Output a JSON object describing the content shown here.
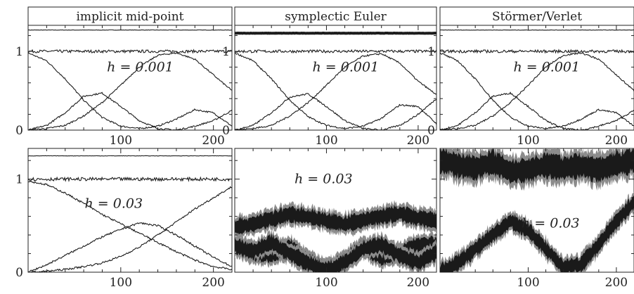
{
  "chart_data": [
    {
      "type": "line",
      "title": "implicit mid-point",
      "annotation": "h = 0.001",
      "xlim": [
        0,
        220
      ],
      "ylim": [
        0,
        1.33
      ],
      "xticks": [
        100,
        200
      ],
      "yticks": [
        0,
        1
      ],
      "series": [
        {
          "x": [
            0,
            220
          ],
          "y": [
            1.27,
            1.27
          ]
        },
        {
          "x": [
            0,
            220
          ],
          "y": [
            1.0,
            1.0
          ]
        },
        {
          "x": [
            0,
            20,
            40,
            60,
            80,
            100,
            120,
            140,
            160,
            180,
            200,
            220
          ],
          "y": [
            0.98,
            0.88,
            0.65,
            0.38,
            0.16,
            0.05,
            0.02,
            0.05,
            0.14,
            0.26,
            0.22,
            0.05
          ]
        },
        {
          "x": [
            0,
            20,
            40,
            60,
            80,
            100,
            120,
            140,
            160,
            180,
            200,
            220
          ],
          "y": [
            0.0,
            0.06,
            0.22,
            0.43,
            0.47,
            0.3,
            0.12,
            0.02,
            0.0,
            0.05,
            0.12,
            0.25
          ]
        },
        {
          "x": [
            0,
            20,
            40,
            60,
            80,
            100,
            120,
            140,
            160,
            180,
            200,
            220
          ],
          "y": [
            0.0,
            0.02,
            0.06,
            0.18,
            0.35,
            0.57,
            0.8,
            0.95,
            0.98,
            0.9,
            0.7,
            0.5
          ]
        }
      ]
    },
    {
      "type": "line",
      "title": "symplectic Euler",
      "annotation": "h = 0.001",
      "xlim": [
        0,
        220
      ],
      "ylim": [
        0,
        1.33
      ],
      "xticks": [
        100,
        200
      ],
      "yticks": [
        0,
        1
      ],
      "series": [
        {
          "x": [
            0,
            220
          ],
          "y": [
            1.23,
            1.23
          ]
        },
        {
          "x": [
            0,
            220
          ],
          "y": [
            1.0,
            1.0
          ]
        },
        {
          "x": [
            0,
            20,
            40,
            60,
            80,
            100,
            120,
            140,
            160,
            180,
            200,
            220
          ],
          "y": [
            0.98,
            0.88,
            0.65,
            0.38,
            0.17,
            0.06,
            0.02,
            0.05,
            0.15,
            0.32,
            0.3,
            0.08
          ]
        },
        {
          "x": [
            0,
            20,
            40,
            60,
            80,
            100,
            120,
            140,
            160,
            180,
            200,
            220
          ],
          "y": [
            0.0,
            0.06,
            0.22,
            0.42,
            0.46,
            0.3,
            0.12,
            0.02,
            0.0,
            0.06,
            0.2,
            0.4
          ]
        },
        {
          "x": [
            0,
            20,
            40,
            60,
            80,
            100,
            120,
            140,
            160,
            180,
            200,
            220
          ],
          "y": [
            0.0,
            0.02,
            0.06,
            0.18,
            0.35,
            0.57,
            0.8,
            0.94,
            0.97,
            0.85,
            0.62,
            0.45
          ]
        }
      ]
    },
    {
      "type": "line",
      "title": "Störmer/Verlet",
      "annotation": "h = 0.001",
      "xlim": [
        0,
        220
      ],
      "ylim": [
        0,
        1.33
      ],
      "xticks": [
        100,
        200
      ],
      "yticks": [
        0,
        1
      ],
      "series": [
        {
          "x": [
            0,
            220
          ],
          "y": [
            1.27,
            1.27
          ]
        },
        {
          "x": [
            0,
            220
          ],
          "y": [
            1.0,
            1.0
          ]
        },
        {
          "x": [
            0,
            20,
            40,
            60,
            80,
            100,
            120,
            140,
            160,
            180,
            200,
            220
          ],
          "y": [
            0.98,
            0.88,
            0.65,
            0.38,
            0.16,
            0.05,
            0.02,
            0.05,
            0.14,
            0.26,
            0.22,
            0.05
          ]
        },
        {
          "x": [
            0,
            20,
            40,
            60,
            80,
            100,
            120,
            140,
            160,
            180,
            200,
            220
          ],
          "y": [
            0.0,
            0.06,
            0.22,
            0.43,
            0.47,
            0.3,
            0.12,
            0.02,
            0.0,
            0.05,
            0.12,
            0.25
          ]
        },
        {
          "x": [
            0,
            20,
            40,
            60,
            80,
            100,
            120,
            140,
            160,
            180,
            200,
            220
          ],
          "y": [
            0.0,
            0.02,
            0.06,
            0.18,
            0.35,
            0.57,
            0.8,
            0.95,
            0.98,
            0.9,
            0.7,
            0.5
          ]
        }
      ]
    },
    {
      "type": "line",
      "title": "",
      "annotation": "h = 0.03",
      "xlim": [
        0,
        220
      ],
      "ylim": [
        0,
        1.33
      ],
      "xticks": [
        100,
        200
      ],
      "yticks": [
        0,
        1
      ],
      "series": [
        {
          "x": [
            0,
            220
          ],
          "y": [
            1.25,
            1.25
          ]
        },
        {
          "x": [
            0,
            220
          ],
          "y": [
            1.0,
            1.0
          ]
        },
        {
          "x": [
            0,
            20,
            40,
            60,
            80,
            100,
            120,
            140,
            160,
            180,
            200,
            220
          ],
          "y": [
            0.98,
            0.94,
            0.85,
            0.74,
            0.62,
            0.52,
            0.42,
            0.32,
            0.22,
            0.13,
            0.06,
            0.03
          ]
        },
        {
          "x": [
            0,
            20,
            40,
            60,
            80,
            100,
            120,
            140,
            160,
            180,
            200,
            220
          ],
          "y": [
            0.0,
            0.08,
            0.18,
            0.28,
            0.38,
            0.46,
            0.53,
            0.5,
            0.4,
            0.28,
            0.16,
            0.06
          ]
        },
        {
          "x": [
            0,
            20,
            40,
            60,
            80,
            100,
            120,
            140,
            160,
            180,
            200,
            220
          ],
          "y": [
            0.0,
            0.01,
            0.03,
            0.06,
            0.1,
            0.17,
            0.27,
            0.4,
            0.54,
            0.68,
            0.8,
            0.92
          ]
        }
      ]
    },
    {
      "type": "area",
      "title": "",
      "annotation": "h = 0.03",
      "xlim": [
        0,
        220
      ],
      "ylim": [
        0,
        1.33
      ],
      "xticks": [
        100,
        200
      ],
      "yticks": [],
      "series": [
        {
          "x": [
            0,
            20,
            40,
            60,
            80,
            100,
            120,
            140,
            160,
            180,
            200,
            220
          ],
          "y": [
            0.48,
            0.52,
            0.57,
            0.62,
            0.6,
            0.55,
            0.52,
            0.56,
            0.6,
            0.63,
            0.58,
            0.55
          ]
        },
        {
          "x": [
            0,
            20,
            40,
            60,
            80,
            100,
            120,
            140,
            160,
            180,
            200,
            220
          ],
          "y": [
            0.3,
            0.2,
            0.18,
            0.28,
            0.12,
            0.03,
            0.12,
            0.28,
            0.15,
            0.2,
            0.3,
            0.3
          ]
        },
        {
          "x": [
            0,
            20,
            40,
            60,
            80,
            100,
            120,
            140,
            160,
            180,
            200,
            220
          ],
          "y": [
            0.28,
            0.22,
            0.32,
            0.2,
            0.1,
            0.02,
            0.1,
            0.25,
            0.3,
            0.18,
            0.1,
            0.22
          ]
        }
      ]
    },
    {
      "type": "area",
      "title": "",
      "annotation": "h = 0.03",
      "xlim": [
        0,
        220
      ],
      "ylim": [
        0,
        1.33
      ],
      "xticks": [
        100,
        200
      ],
      "yticks": [],
      "series": [
        {
          "x": [
            0,
            20,
            40,
            60,
            80,
            100,
            120,
            140,
            160,
            180,
            200,
            220
          ],
          "y": [
            1.2,
            1.15,
            1.12,
            1.18,
            1.08,
            1.1,
            1.15,
            1.12,
            1.14,
            1.1,
            1.16,
            1.2
          ]
        },
        {
          "x": [
            0,
            20,
            40,
            60,
            80,
            100,
            120,
            140,
            160,
            180,
            200,
            220
          ],
          "y": [
            0.0,
            0.1,
            0.25,
            0.4,
            0.55,
            0.45,
            0.25,
            0.05,
            0.08,
            0.3,
            0.55,
            0.75
          ]
        }
      ]
    }
  ]
}
